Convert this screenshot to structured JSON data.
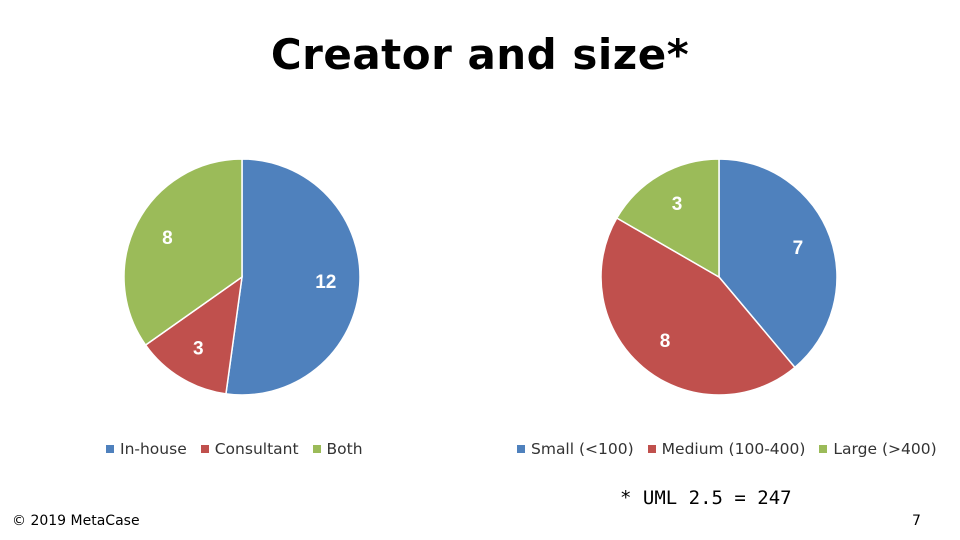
{
  "slide": {
    "title": "Creator and size*",
    "footnote": "* UML 2.5 = 247",
    "copyright": "© 2019 MetaCase",
    "page_number": "7"
  },
  "chart_data": [
    {
      "type": "pie",
      "title": "",
      "categories": [
        "In-house",
        "Consultant",
        "Both"
      ],
      "values": [
        12,
        3,
        8
      ],
      "colors": [
        "#4f81bd",
        "#c0504d",
        "#9bbb59"
      ],
      "data_labels": [
        "12",
        "3",
        "8"
      ],
      "start_angle": "12 o'clock",
      "direction": "clockwise",
      "legend": "bottom"
    },
    {
      "type": "pie",
      "title": "",
      "categories": [
        "Small (<100)",
        "Medium (100-400)",
        "Large (>400)"
      ],
      "values": [
        7,
        8,
        3
      ],
      "colors": [
        "#4f81bd",
        "#c0504d",
        "#9bbb59"
      ],
      "data_labels": [
        "7",
        "8",
        "3"
      ],
      "start_angle": "12 o'clock",
      "direction": "clockwise",
      "legend": "bottom"
    }
  ]
}
